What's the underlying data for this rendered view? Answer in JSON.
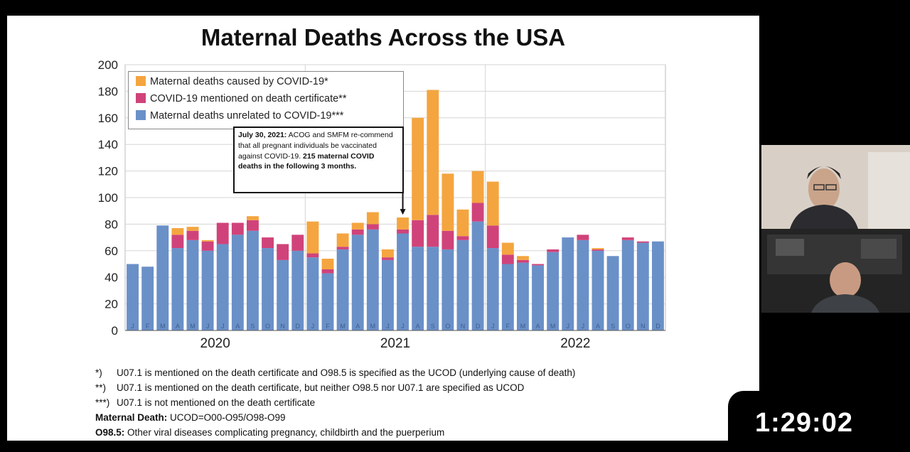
{
  "slide": {
    "title": "Maternal Deaths Across the USA",
    "legend": [
      {
        "label": "Maternal deaths caused by COVID-19*",
        "color": "#f4a540"
      },
      {
        "label": "COVID-19 mentioned on death certificate**",
        "color": "#d0437a"
      },
      {
        "label": "Maternal deaths unrelated to COVID-19***",
        "color": "#6a90c8"
      }
    ],
    "annotation": {
      "date": "July 30, 2021:",
      "text": "ACOG and SMFM re-commend that all pregnant individuals be vaccinated against COVID-19.",
      "bold": "215 maternal COVID deaths in the following 3 months."
    },
    "footnotes": [
      {
        "mark": "*)",
        "text": "U07.1 is mentioned on the death certificate and O98.5 is specified as the UCOD (underlying cause of death)"
      },
      {
        "mark": "**)",
        "text": "U07.1 is mentioned on the death certificate, but neither O98.5 nor U07.1 are specified as UCOD"
      },
      {
        "mark": "***)",
        "text": "U07.1 is not mentioned on the death certificate"
      }
    ],
    "definitions": [
      {
        "term": "Maternal Death:",
        "text": "UCOD=O00-O95/O98-O99"
      },
      {
        "term": "O98.5:",
        "text": "Other viral diseases complicating pregnancy, childbirth and the puerperium"
      }
    ]
  },
  "chart_data": {
    "type": "bar",
    "stacked": true,
    "ylim": [
      0,
      200
    ],
    "yticks": [
      0,
      20,
      40,
      60,
      80,
      100,
      120,
      140,
      160,
      180,
      200
    ],
    "grid": true,
    "legend_position": "top-left",
    "month_labels": [
      "J",
      "F",
      "M",
      "A",
      "M",
      "J",
      "J",
      "A",
      "S",
      "O",
      "N",
      "D",
      "J",
      "F",
      "M",
      "A",
      "M",
      "J",
      "J",
      "A",
      "S",
      "O",
      "N",
      "D",
      "J",
      "F",
      "M",
      "A",
      "M",
      "J",
      "J",
      "A",
      "S",
      "O",
      "N",
      "D"
    ],
    "year_labels": [
      "2020",
      "2021",
      "2022"
    ],
    "series": [
      {
        "name": "Maternal deaths unrelated to COVID-19***",
        "color": "#6a90c8",
        "values": [
          50,
          48,
          79,
          62,
          68,
          60,
          65,
          72,
          75,
          62,
          53,
          60,
          55,
          43,
          61,
          72,
          76,
          53,
          73,
          63,
          63,
          61,
          68,
          82,
          62,
          50,
          51,
          49,
          59,
          70,
          68,
          60,
          56,
          68,
          66,
          67
        ]
      },
      {
        "name": "COVID-19 mentioned on death certificate**",
        "color": "#d0437a",
        "values": [
          0,
          0,
          0,
          10,
          7,
          7,
          16,
          9,
          8,
          8,
          12,
          12,
          3,
          3,
          2,
          4,
          4,
          2,
          3,
          20,
          24,
          14,
          3,
          14,
          17,
          7,
          2,
          1,
          2,
          0,
          4,
          1,
          0,
          2,
          1,
          0
        ]
      },
      {
        "name": "Maternal deaths caused by COVID-19*",
        "color": "#f4a540",
        "values": [
          0,
          0,
          0,
          5,
          3,
          1,
          0,
          0,
          3,
          0,
          0,
          0,
          24,
          8,
          10,
          5,
          9,
          6,
          9,
          77,
          94,
          43,
          20,
          24,
          33,
          9,
          3,
          0,
          0,
          0,
          0,
          1,
          0,
          0,
          0,
          0
        ]
      }
    ]
  },
  "timestamp": "1:29:02"
}
